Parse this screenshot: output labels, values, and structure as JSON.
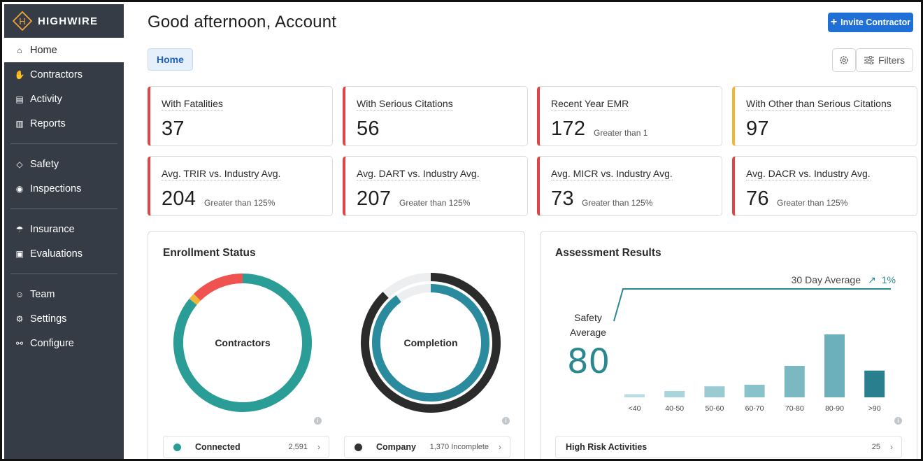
{
  "brand": {
    "name": "HIGHWIRE",
    "logo_letter": "H"
  },
  "sidebar": {
    "items": [
      {
        "label": "Home",
        "icon": "home-icon",
        "active": true
      },
      {
        "label": "Contractors",
        "icon": "handshake-icon"
      },
      {
        "label": "Activity",
        "icon": "briefcase-icon"
      },
      {
        "label": "Reports",
        "icon": "bar-chart-icon"
      },
      {
        "label": "Safety",
        "icon": "shield-icon"
      },
      {
        "label": "Inspections",
        "icon": "eye-icon"
      },
      {
        "label": "Insurance",
        "icon": "umbrella-icon"
      },
      {
        "label": "Evaluations",
        "icon": "clipboard-icon"
      },
      {
        "label": "Team",
        "icon": "team-icon"
      },
      {
        "label": "Settings",
        "icon": "gear-icon"
      },
      {
        "label": "Configure",
        "icon": "configure-icon"
      }
    ]
  },
  "header": {
    "greeting": "Good afternoon, Account",
    "invite_label": "Invite Contractor",
    "breadcrumb": "Home",
    "filters_label": "Filters"
  },
  "stats": [
    {
      "title": "With Fatalities",
      "value": "37",
      "sub": "",
      "accent": "#e04545"
    },
    {
      "title": "With Serious Citations",
      "value": "56",
      "sub": "",
      "accent": "#e04545"
    },
    {
      "title": "Recent Year EMR",
      "value": "172",
      "sub": "Greater than 1",
      "accent": "#e04545"
    },
    {
      "title": "With Other than Serious Citations",
      "value": "97",
      "sub": "",
      "accent": "#f2b632"
    },
    {
      "title": "Avg. TRIR vs. Industry Avg.",
      "value": "204",
      "sub": "Greater than 125%",
      "accent": "#e04545"
    },
    {
      "title": "Avg. DART vs. Industry Avg.",
      "value": "207",
      "sub": "Greater than 125%",
      "accent": "#e04545"
    },
    {
      "title": "Avg. MICR vs. Industry Avg.",
      "value": "73",
      "sub": "Greater than 125%",
      "accent": "#e04545"
    },
    {
      "title": "Avg. DACR vs. Industry Avg.",
      "value": "76",
      "sub": "Greater than 125%",
      "accent": "#e04545"
    }
  ],
  "enrollment": {
    "title": "Enrollment Status",
    "contractors_label": "Contractors",
    "completion_label": "Completion",
    "contractors_ring": [
      {
        "color": "#2a9d96",
        "fraction": 0.86
      },
      {
        "color": "#f0b53b",
        "fraction": 0.015
      },
      {
        "color": "#ef5350",
        "fraction": 0.125
      }
    ],
    "completion_outer_fraction": 0.88,
    "completion_inner_fraction": 0.9,
    "legend": [
      {
        "label": "Connected",
        "value": "2,591",
        "color": "#2a9d96"
      },
      {
        "label": "Company",
        "value": "1,370 Incomplete",
        "color": "#333333"
      }
    ]
  },
  "assessment": {
    "title": "Assessment Results",
    "average_label": "30 Day Average",
    "average_trend": "1%",
    "safety_label": "Safety Average",
    "safety_value": "80",
    "footer_label": "High Risk Activities",
    "footer_value": "25"
  },
  "chart_data": {
    "type": "bar",
    "categories": [
      "<40",
      "40-50",
      "50-60",
      "60-70",
      "70-80",
      "80-90",
      ">90"
    ],
    "values": [
      2,
      4,
      7,
      8,
      20,
      40,
      17
    ],
    "ylim": [
      0,
      40
    ],
    "colors": [
      "#b9dde2",
      "#a9d4da",
      "#9acbd2",
      "#89c2ca",
      "#7bb9c2",
      "#6bb0bb",
      "#2a7f8f"
    ]
  }
}
